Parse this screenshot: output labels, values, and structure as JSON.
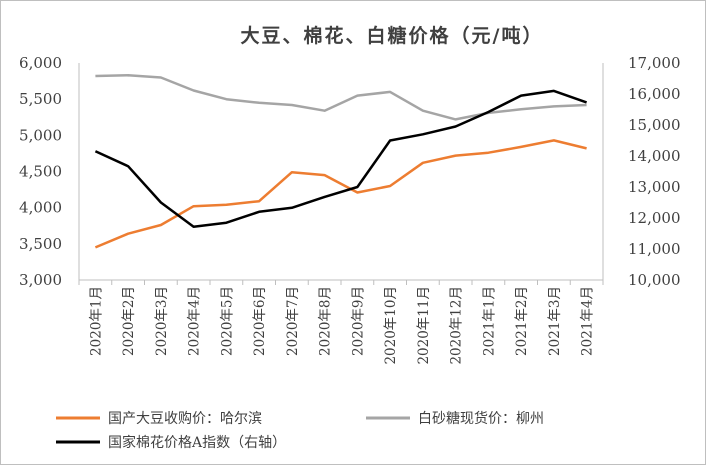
{
  "chart_data": {
    "type": "line",
    "title": "大豆、棉花、白糖价格（元/吨）",
    "categories": [
      "2020年1月",
      "2020年2月",
      "2020年3月",
      "2020年4月",
      "2020年5月",
      "2020年6月",
      "2020年7月",
      "2020年8月",
      "2020年9月",
      "2020年10月",
      "2020年11月",
      "2020年12月",
      "2021年1月",
      "2021年2月",
      "2021年3月",
      "2021年4月"
    ],
    "left_axis": {
      "ylim": [
        3000,
        6000
      ],
      "ticks": [
        "3,000",
        "3,500",
        "4,000",
        "4,500",
        "5,000",
        "5,500",
        "6,000"
      ]
    },
    "right_axis": {
      "ylim": [
        10000,
        17000
      ],
      "ticks": [
        "10,000",
        "11,000",
        "12,000",
        "13,000",
        "14,000",
        "15,000",
        "16,000",
        "17,000"
      ]
    },
    "series": [
      {
        "name": "国产大豆收购价：哈尔滨",
        "axis": "left",
        "color": "#ed7d31",
        "values": [
          3450,
          3640,
          3760,
          4020,
          4040,
          4090,
          4490,
          4450,
          4210,
          4300,
          4620,
          4720,
          4760,
          4840,
          4930,
          4820
        ]
      },
      {
        "name": "白砂糖现货价：柳州",
        "axis": "left",
        "color": "#a5a5a5",
        "values": [
          5820,
          5830,
          5800,
          5620,
          5500,
          5450,
          5420,
          5340,
          5550,
          5600,
          5340,
          5220,
          5310,
          5360,
          5400,
          5420
        ]
      },
      {
        "name": "国家棉花价格A指数（右轴）",
        "axis": "right",
        "color": "#000000",
        "values": [
          14150,
          13670,
          12500,
          11720,
          11850,
          12200,
          12330,
          12680,
          13000,
          14500,
          14700,
          14950,
          15420,
          15950,
          16100,
          15730
        ]
      }
    ],
    "legend": "bottom",
    "grid": false
  }
}
